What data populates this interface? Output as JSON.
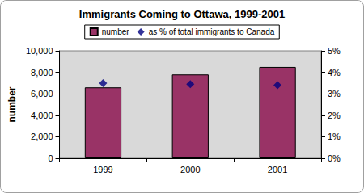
{
  "chart_data": {
    "type": "bar",
    "title": "Immigrants Coming to Ottawa, 1999-2001",
    "categories": [
      "1999",
      "2000",
      "2001"
    ],
    "series": [
      {
        "name": "number",
        "type": "bar",
        "color": "#993366",
        "values": [
          6600,
          7800,
          8500
        ]
      },
      {
        "name": "as % of total immigrants to Canada",
        "type": "scatter",
        "marker": "diamond",
        "color": "#000080",
        "axis": "y2",
        "values": [
          3.5,
          3.45,
          3.4
        ]
      }
    ],
    "ylabel": "number",
    "ylim": [
      0,
      10000
    ],
    "yticks": [
      0,
      {
        "value": 2000,
        "label": "2,000"
      },
      {
        "value": 4000,
        "label": "4,000"
      },
      {
        "value": 6000,
        "label": "6,000"
      },
      {
        "value": 8000,
        "label": "8,000"
      },
      {
        "value": 10000,
        "label": "10,000"
      }
    ],
    "y2lim": [
      0,
      5
    ],
    "y2ticks": [
      {
        "value": 0,
        "label": "0%"
      },
      {
        "value": 1,
        "label": "1%"
      },
      {
        "value": 2,
        "label": "2%"
      },
      {
        "value": 3,
        "label": "3%"
      },
      {
        "value": 4,
        "label": "4%"
      },
      {
        "value": 5,
        "label": "5%"
      }
    ],
    "grid": false,
    "legend": "top"
  }
}
